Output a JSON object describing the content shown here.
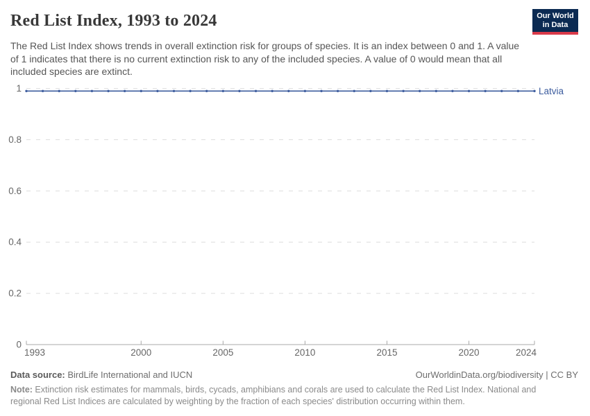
{
  "header": {
    "title": "Red List Index, 1993 to 2024",
    "subtitle": "The Red List Index shows trends in overall extinction risk for groups of species. It is an index between 0 and 1. A value of 1 indicates that there is no current extinction risk to any of the included species. A value of 0 would mean that all included species are extinct.",
    "logo": {
      "line1": "Our World",
      "line2": "in Data"
    }
  },
  "chart_data": {
    "type": "line",
    "title": "Red List Index, 1993 to 2024",
    "xlabel": "",
    "ylabel": "",
    "xlim": [
      1993,
      2024
    ],
    "ylim": [
      0,
      1
    ],
    "xticks": [
      1993,
      2000,
      2005,
      2010,
      2015,
      2020,
      2024
    ],
    "yticks": [
      0,
      0.2,
      0.4,
      0.6,
      0.8,
      1
    ],
    "grid": "horizontal-dashed",
    "legend_position": "end-of-line-label",
    "series": [
      {
        "name": "Latvia",
        "color": "#3c5c9e",
        "x": [
          1993,
          1994,
          1995,
          1996,
          1997,
          1998,
          1999,
          2000,
          2001,
          2002,
          2003,
          2004,
          2005,
          2006,
          2007,
          2008,
          2009,
          2010,
          2011,
          2012,
          2013,
          2014,
          2015,
          2016,
          2017,
          2018,
          2019,
          2020,
          2021,
          2022,
          2023,
          2024
        ],
        "values": [
          0.99,
          0.99,
          0.99,
          0.99,
          0.99,
          0.99,
          0.99,
          0.99,
          0.99,
          0.99,
          0.99,
          0.99,
          0.99,
          0.99,
          0.99,
          0.99,
          0.99,
          0.99,
          0.99,
          0.99,
          0.99,
          0.99,
          0.99,
          0.99,
          0.99,
          0.99,
          0.99,
          0.99,
          0.99,
          0.99,
          0.99,
          0.99
        ]
      }
    ]
  },
  "footer": {
    "data_source_label": "Data source:",
    "data_source": " BirdLife International and IUCN",
    "attribution": "OurWorldinData.org/biodiversity | CC BY",
    "note_label": "Note:",
    "note": " Extinction risk estimates for mammals, birds, cycads, amphibians and corals are used to calculate the Red List Index. National and regional Red List Indices are calculated by weighting by the fraction of each species' distribution occurring within them."
  },
  "colors": {
    "accent_line": "#3c5c9e",
    "logo_bg": "#0b2a52",
    "logo_red": "#d93a4a",
    "grid": "#dddddd",
    "axis": "#a8a8a8",
    "tick_label": "#666666",
    "title_text": "#383838",
    "subtitle_text": "#555555"
  }
}
